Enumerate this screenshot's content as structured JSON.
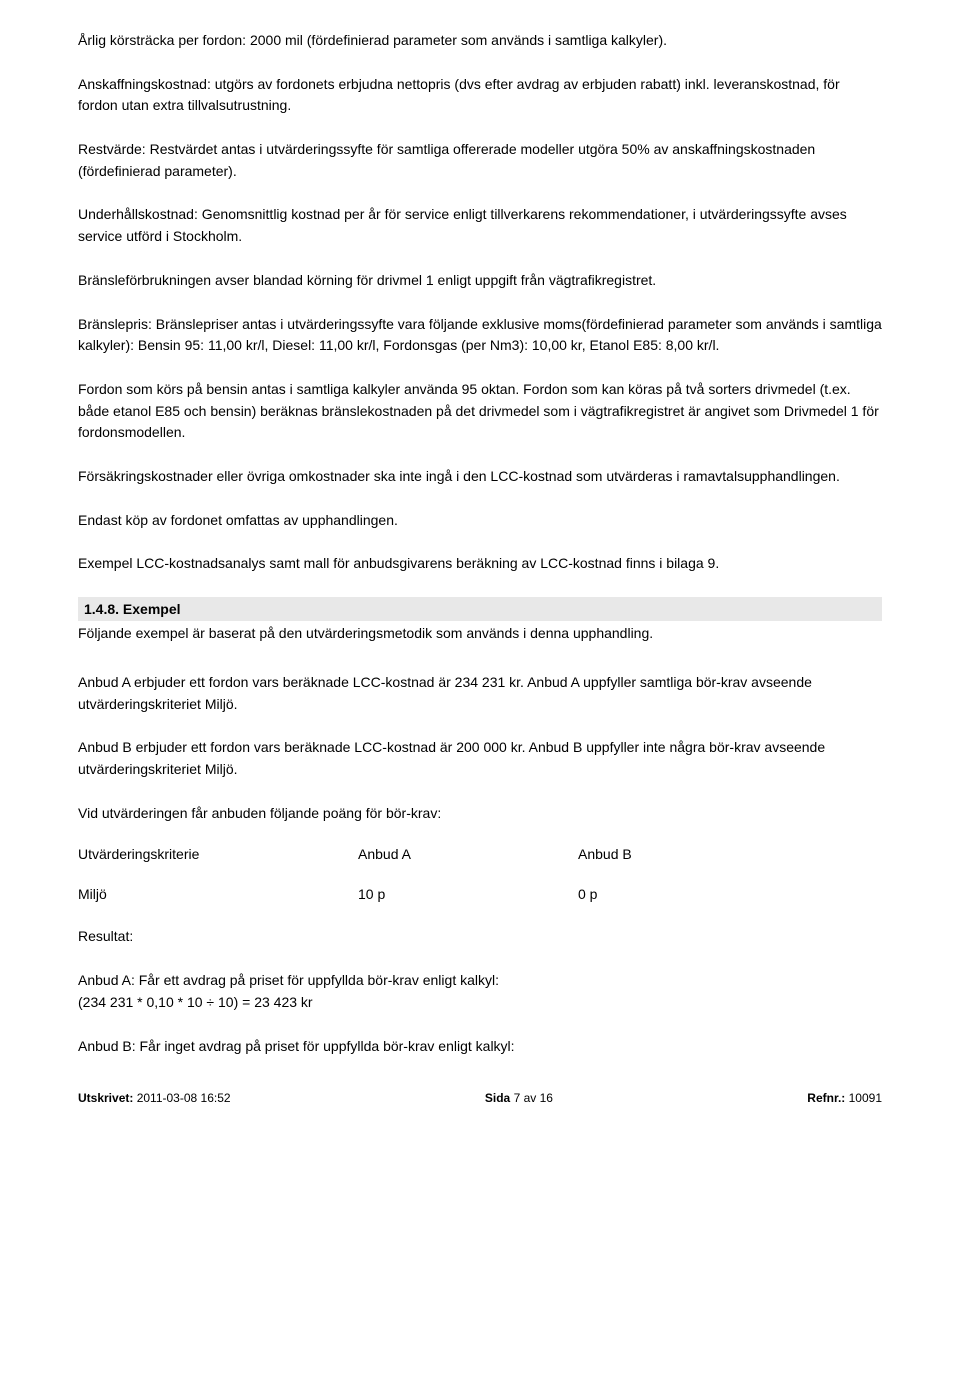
{
  "p1": "Årlig körsträcka per fordon: 2000 mil (fördefinierad parameter som används i samtliga kalkyler).",
  "p2": "Anskaffningskostnad: utgörs av fordonets erbjudna nettopris (dvs efter avdrag av erbjuden rabatt) inkl. leveranskostnad, för fordon utan extra tillvalsutrustning.",
  "p3": "Restvärde: Restvärdet antas i utvärderingssyfte för samtliga offererade modeller utgöra 50% av anskaffningskostnaden (fördefinierad parameter).",
  "p4": "Underhållskostnad: Genomsnittlig kostnad per år för service enligt tillverkarens rekommendationer, i utvärderingssyfte avses service utförd i Stockholm.",
  "p5": "Bränsleförbrukningen avser blandad körning för drivmel 1 enligt uppgift från vägtrafikregistret.",
  "p6": "Bränslepris: Bränslepriser antas i utvärderingssyfte vara följande exklusive moms(fördefinierad parameter som används i samtliga kalkyler): Bensin 95: 11,00 kr/l, Diesel: 11,00 kr/l, Fordonsgas (per Nm3): 10,00 kr, Etanol E85: 8,00 kr/l.",
  "p7": "Fordon som körs på bensin antas i samtliga kalkyler använda 95 oktan. Fordon som kan köras på två sorters drivmedel (t.ex. både etanol E85 och bensin) beräknas bränslekostnaden på det drivmedel som i vägtrafikregistret är angivet som Drivmedel 1 för fordonsmodellen.",
  "p8": "Försäkringskostnader eller övriga omkostnader ska inte ingå i den LCC-kostnad som utvärderas i ramavtalsupphandlingen.",
  "p9": "Endast köp av fordonet omfattas av upphandlingen.",
  "p10": "Exempel LCC-kostnadsanalys samt mall för anbudsgivarens beräkning av LCC-kostnad finns i bilaga 9.",
  "heading": "1.4.8. Exempel",
  "sub": "Följande exempel är baserat på den utvärderingsmetodik som används i denna upphandling.",
  "ex1": "Anbud A erbjuder ett fordon vars beräknade LCC-kostnad är 234 231 kr. Anbud A uppfyller samtliga bör-krav avseende utvärderingskriteriet Miljö.",
  "ex2": "Anbud B erbjuder ett fordon vars beräknade LCC-kostnad är 200 000 kr. Anbud B uppfyller inte några bör-krav avseende utvärderingskriteriet Miljö.",
  "ex3": "Vid utvärderingen får anbuden följande poäng för bör-krav:",
  "tbl_h1": "Utvärderingskriterie",
  "tbl_h2": "Anbud A",
  "tbl_h3": "Anbud B",
  "tbl_r1": "Miljö",
  "tbl_r2": "10 p",
  "tbl_r3": "0 p",
  "res_label": "Resultat:",
  "resA1": "Anbud A: Får ett avdrag på priset för uppfyllda bör-krav enligt kalkyl:",
  "resA2": "(234 231 * 0,10 * 10 ÷ 10) = 23 423 kr",
  "resB": "Anbud B: Får inget avdrag på priset för uppfyllda bör-krav enligt kalkyl:",
  "footer": {
    "left_label": "Utskrivet:",
    "left_value": " 2011-03-08 16:52",
    "center_label": "Sida ",
    "center_value": "7 av 16",
    "right_label": "Refnr.:",
    "right_value": " 10091"
  }
}
